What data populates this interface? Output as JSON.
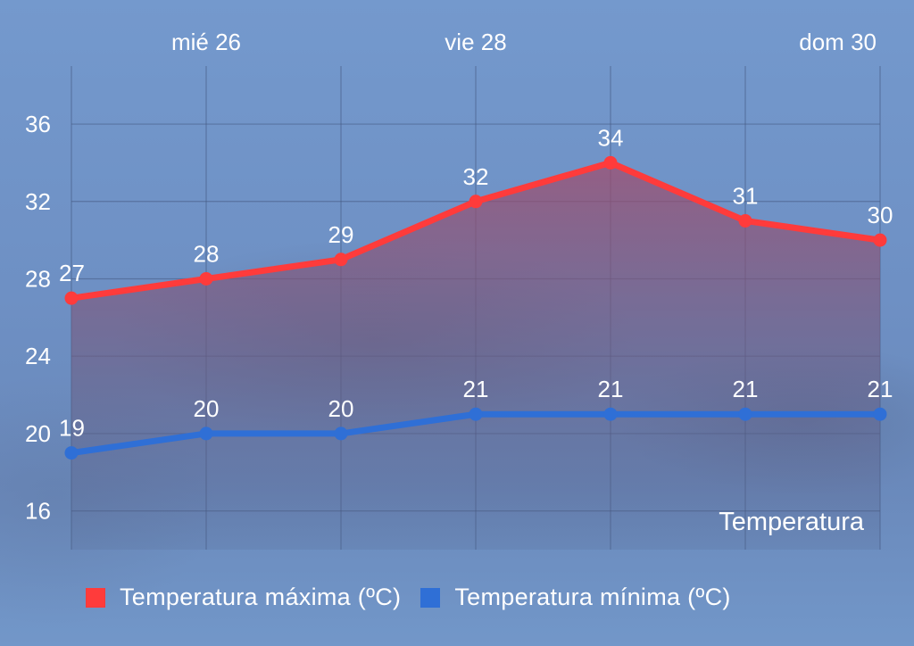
{
  "chart_data": {
    "type": "line",
    "title": "Temperatura",
    "x_tick_labels": [
      {
        "index": 1,
        "label": "mié 26"
      },
      {
        "index": 3,
        "label": "vie 28"
      },
      {
        "index": 5,
        "label": "dom 30"
      }
    ],
    "y_ticks": [
      16,
      20,
      24,
      28,
      32,
      36
    ],
    "ylim": [
      14,
      39
    ],
    "grid": true,
    "legend_position": "bottom-left",
    "series": [
      {
        "name": "Temperatura máxima (ºC)",
        "color": "#ff3b3b",
        "values": [
          27,
          28,
          29,
          32,
          34,
          31,
          30
        ],
        "labels": [
          "27",
          "28",
          "29",
          "32",
          "34",
          "31",
          "30"
        ]
      },
      {
        "name": "Temperatura mínima (ºC)",
        "color": "#2f6fd6",
        "values": [
          19,
          20,
          20,
          21,
          21,
          21,
          21
        ],
        "labels": [
          "19",
          "20",
          "20",
          "21",
          "21",
          "21",
          "21"
        ]
      }
    ]
  }
}
